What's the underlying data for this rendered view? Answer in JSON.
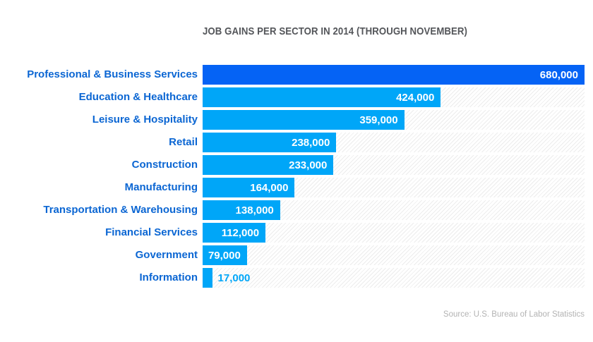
{
  "title": "JOB GAINS PER SECTOR IN 2014 (THROUGH NOVEMBER)",
  "source": "Source: U.S. Bureau of Labor Statistics",
  "colors": {
    "bar": "#00a6f8",
    "bar_highlight": "#0563f5",
    "category_label": "#0b66d3",
    "title_text": "#54565a",
    "value_inside_text": "#ffffff",
    "source_text": "#b3b3b3",
    "track_hatch": "#ececec",
    "background": "#ffffff"
  },
  "chart_data": {
    "type": "bar",
    "orientation": "horizontal",
    "title": "JOB GAINS PER SECTOR IN 2014 (THROUGH NOVEMBER)",
    "source": "Source: U.S. Bureau of Labor Statistics",
    "categories": [
      "Professional & Business Services",
      "Education & Healthcare",
      "Leisure & Hospitality",
      "Retail",
      "Construction",
      "Manufacturing",
      "Transportation & Warehousing",
      "Financial Services",
      "Government",
      "Information"
    ],
    "values": [
      680000,
      424000,
      359000,
      238000,
      233000,
      164000,
      138000,
      112000,
      79000,
      17000
    ],
    "value_labels": [
      "680,000",
      "424,000",
      "359,000",
      "238,000",
      "233,000",
      "164,000",
      "138,000",
      "112,000",
      "79,000",
      "17,000"
    ],
    "value_inside": [
      true,
      true,
      true,
      true,
      true,
      true,
      true,
      true,
      true,
      false
    ],
    "highlight_index": 0,
    "max_value": 680000,
    "axis_range": [
      0,
      680000
    ],
    "grid": false,
    "legend": false
  }
}
